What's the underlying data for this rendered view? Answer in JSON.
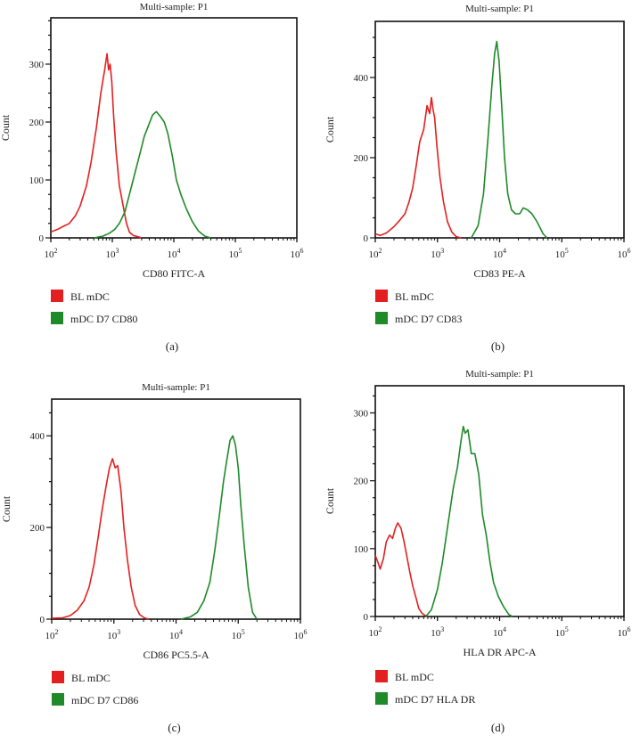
{
  "colors": {
    "red": "#e41f1f",
    "green": "#1e8a28",
    "axis": "#111111"
  },
  "chart_data": [
    {
      "type": "line",
      "panel_label": "(a)",
      "title": "Multi-sample: P1",
      "xlabel": "CD80 FITC-A",
      "ylabel": "Count",
      "xscale": "log",
      "xlim": [
        100,
        1000000
      ],
      "ylim": [
        0,
        380
      ],
      "yticks": [
        0,
        100,
        200,
        300
      ],
      "xtick_labels": [
        {
          "base": "10",
          "exp": "2"
        },
        {
          "base": "10",
          "exp": "3"
        },
        {
          "base": "10",
          "exp": "4"
        },
        {
          "base": "10",
          "exp": "5"
        },
        {
          "base": "10",
          "exp": "6"
        }
      ],
      "legend": [
        "BL mDC",
        "mDC D7 CD80"
      ],
      "series": [
        {
          "name": "BL mDC",
          "color": "red",
          "x": [
            100,
            110,
            130,
            160,
            200,
            250,
            300,
            380,
            450,
            550,
            650,
            750,
            820,
            870,
            920,
            980,
            1050,
            1150,
            1300,
            1500,
            1700,
            1900,
            2200,
            2600,
            3000
          ],
          "y": [
            10,
            12,
            15,
            20,
            25,
            38,
            55,
            90,
            130,
            190,
            250,
            290,
            318,
            290,
            300,
            270,
            210,
            150,
            90,
            55,
            25,
            10,
            4,
            2,
            0
          ]
        },
        {
          "name": "mDC D7 CD80",
          "color": "green",
          "x": [
            500,
            700,
            900,
            1100,
            1300,
            1600,
            1900,
            2300,
            2800,
            3300,
            3900,
            4500,
            5200,
            6000,
            7000,
            8000,
            9500,
            11000,
            13000,
            16000,
            20000,
            25000,
            32000,
            40000
          ],
          "y": [
            0,
            3,
            8,
            15,
            25,
            45,
            75,
            110,
            145,
            175,
            195,
            212,
            218,
            210,
            200,
            180,
            140,
            100,
            75,
            50,
            28,
            12,
            3,
            0
          ]
        }
      ]
    },
    {
      "type": "line",
      "panel_label": "(b)",
      "title": "Multi-sample: P1",
      "xlabel": "CD83 PE-A",
      "ylabel": "Count",
      "xscale": "log",
      "xlim": [
        100,
        1000000
      ],
      "ylim": [
        0,
        540
      ],
      "yticks": [
        0,
        200,
        400
      ],
      "xtick_labels": [
        {
          "base": "10",
          "exp": "2"
        },
        {
          "base": "10",
          "exp": "3"
        },
        {
          "base": "10",
          "exp": "4"
        },
        {
          "base": "10",
          "exp": "5"
        },
        {
          "base": "10",
          "exp": "6"
        }
      ],
      "legend": [
        "BL mDC",
        "mDC D7 CD83"
      ],
      "series": [
        {
          "name": "BL mDC",
          "color": "red",
          "x": [
            100,
            120,
            150,
            200,
            250,
            300,
            350,
            400,
            450,
            520,
            600,
            680,
            750,
            800,
            850,
            900,
            980,
            1100,
            1250,
            1450,
            1700,
            2000,
            2400
          ],
          "y": [
            10,
            6,
            12,
            28,
            45,
            60,
            90,
            125,
            175,
            240,
            270,
            330,
            310,
            350,
            320,
            300,
            230,
            150,
            90,
            40,
            15,
            3,
            0
          ]
        },
        {
          "name": "mDC D7 CD83",
          "color": "green",
          "x": [
            3500,
            4500,
            5500,
            6500,
            7500,
            8300,
            9000,
            9800,
            10800,
            12000,
            13500,
            15500,
            18000,
            21000,
            24000,
            28000,
            33000,
            40000,
            50000,
            58000
          ],
          "y": [
            0,
            30,
            110,
            250,
            380,
            460,
            490,
            440,
            330,
            200,
            110,
            70,
            60,
            60,
            75,
            70,
            60,
            40,
            10,
            0
          ]
        }
      ]
    },
    {
      "type": "line",
      "panel_label": "(c)",
      "title": "Multi-sample: P1",
      "xlabel": "CD86 PC5.5-A",
      "ylabel": "Count",
      "xscale": "log",
      "xlim": [
        100,
        1000000
      ],
      "ylim": [
        0,
        480
      ],
      "yticks": [
        0,
        200,
        400
      ],
      "xtick_labels": [
        {
          "base": "10",
          "exp": "2"
        },
        {
          "base": "10",
          "exp": "3"
        },
        {
          "base": "10",
          "exp": "4"
        },
        {
          "base": "10",
          "exp": "5"
        },
        {
          "base": "10",
          "exp": "6"
        }
      ],
      "legend": [
        "BL mDC",
        "mDC D7 CD86"
      ],
      "series": [
        {
          "name": "BL mDC",
          "color": "red",
          "x": [
            100,
            150,
            200,
            260,
            330,
            400,
            480,
            560,
            650,
            750,
            850,
            950,
            1050,
            1150,
            1300,
            1450,
            1650,
            1900,
            2200,
            2600,
            3100,
            3600
          ],
          "y": [
            2,
            3,
            8,
            20,
            40,
            70,
            120,
            180,
            240,
            290,
            330,
            350,
            330,
            335,
            280,
            200,
            130,
            70,
            30,
            10,
            3,
            0
          ]
        },
        {
          "name": "mDC D7 CD86",
          "color": "green",
          "x": [
            12000,
            17000,
            22000,
            28000,
            35000,
            42000,
            50000,
            58000,
            66000,
            74000,
            82000,
            90000,
            100000,
            110000,
            125000,
            145000,
            170000,
            200000
          ],
          "y": [
            0,
            5,
            15,
            40,
            80,
            150,
            230,
            300,
            350,
            390,
            400,
            380,
            330,
            250,
            160,
            70,
            15,
            0
          ]
        }
      ]
    },
    {
      "type": "line",
      "panel_label": "(d)",
      "title": "Multi-sample: P1",
      "xlabel": "HLA DR APC-A",
      "ylabel": "Count",
      "xscale": "log",
      "xlim": [
        100,
        1000000
      ],
      "ylim": [
        0,
        340
      ],
      "yticks": [
        0,
        100,
        200,
        300
      ],
      "xtick_labels": [
        {
          "base": "10",
          "exp": "2"
        },
        {
          "base": "10",
          "exp": "3"
        },
        {
          "base": "10",
          "exp": "4"
        },
        {
          "base": "10",
          "exp": "5"
        },
        {
          "base": "10",
          "exp": "6"
        }
      ],
      "legend": [
        "BL mDC",
        "mDC D7 HLA DR"
      ],
      "series": [
        {
          "name": "BL mDC",
          "color": "red",
          "x": [
            100,
            110,
            120,
            135,
            150,
            170,
            190,
            210,
            230,
            260,
            290,
            320,
            360,
            400,
            450,
            500,
            560,
            620,
            700
          ],
          "y": [
            90,
            80,
            70,
            85,
            110,
            120,
            115,
            130,
            138,
            130,
            110,
            90,
            65,
            45,
            28,
            12,
            5,
            2,
            0
          ]
        },
        {
          "name": "mDC D7 HLA DR",
          "color": "green",
          "x": [
            650,
            800,
            1000,
            1200,
            1500,
            1800,
            2100,
            2400,
            2600,
            2800,
            3100,
            3500,
            4000,
            4600,
            5300,
            6100,
            7000,
            8000,
            9500,
            11500,
            14000,
            16000
          ],
          "y": [
            0,
            10,
            40,
            80,
            140,
            190,
            220,
            260,
            280,
            270,
            275,
            240,
            240,
            210,
            150,
            120,
            80,
            50,
            30,
            15,
            3,
            0
          ]
        }
      ]
    }
  ]
}
